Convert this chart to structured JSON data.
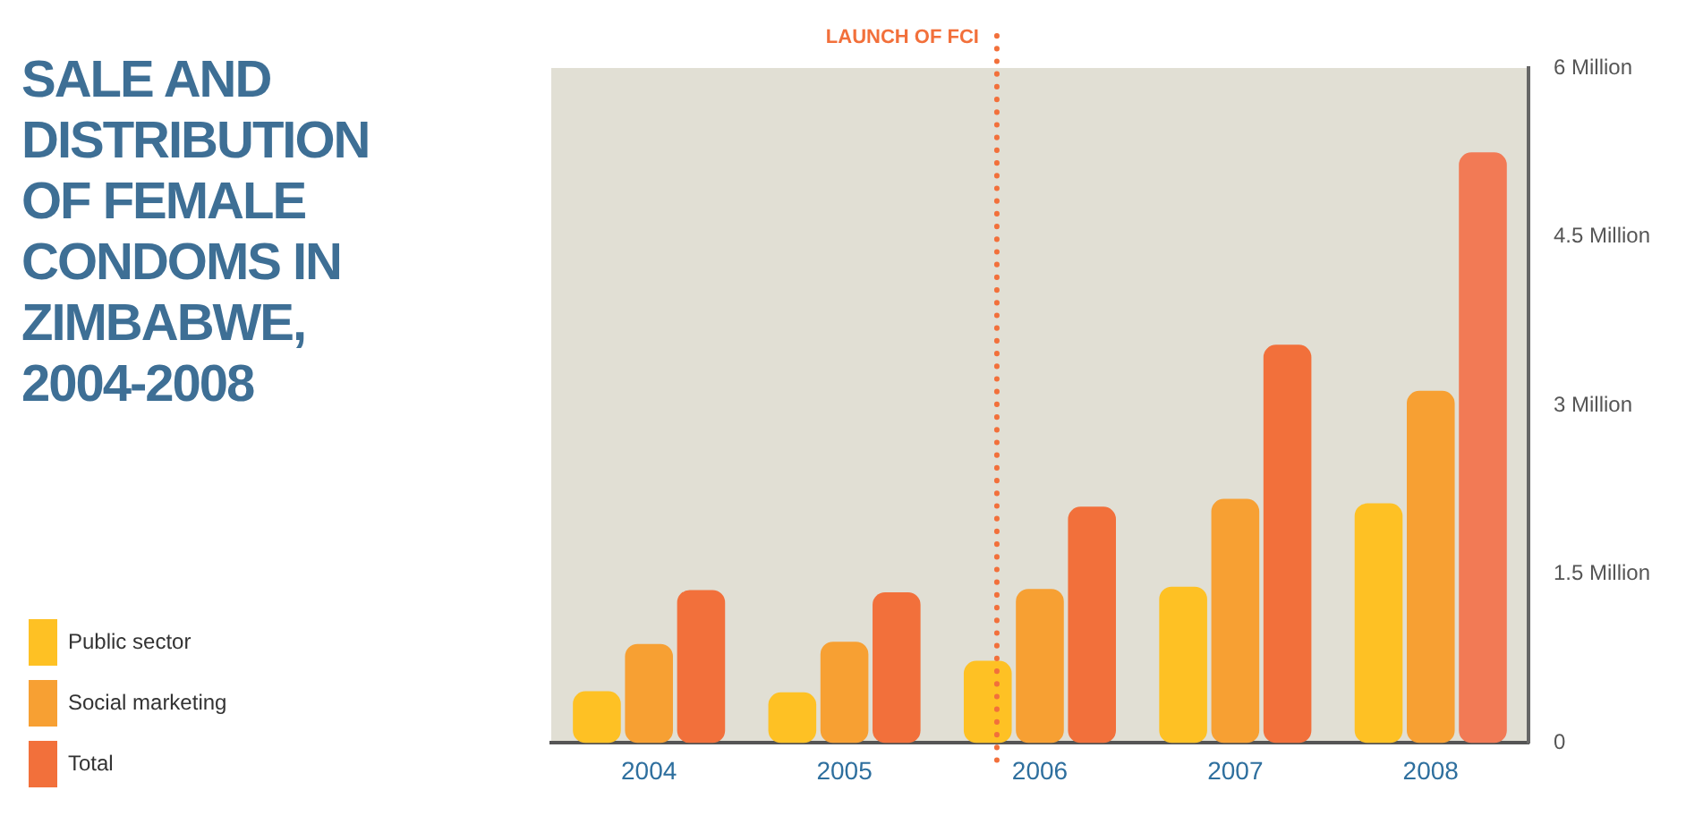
{
  "chart_data": {
    "type": "bar",
    "title": "SALE AND DISTRIBUTION OF FEMALE CONDOMS IN ZIMBABWE, 2004-2008",
    "categories": [
      "2004",
      "2005",
      "2006",
      "2007",
      "2008"
    ],
    "series": [
      {
        "name": "Public sector",
        "color": "#fec124",
        "values": [
          0.46,
          0.45,
          0.73,
          1.39,
          2.13
        ]
      },
      {
        "name": "Social marketing",
        "color": "#f7a033",
        "values": [
          0.88,
          0.9,
          1.37,
          2.17,
          3.13
        ]
      },
      {
        "name": "Total",
        "color": "#f2703b",
        "colors": [
          "#f2703b",
          "#f2703b",
          "#f2703b",
          "#f2703b",
          "#f27a55"
        ],
        "values": [
          1.36,
          1.34,
          2.1,
          3.54,
          5.25
        ]
      }
    ],
    "ylim": [
      0,
      6
    ],
    "yticks": [
      0,
      {
        "value": 1.5,
        "label": "1.5 Million"
      },
      {
        "value": 3,
        "label": "3 Million"
      },
      {
        "value": 4.5,
        "label": "4.5 Million"
      },
      {
        "value": 6,
        "label": "6 Million"
      }
    ],
    "ref_lines": [
      {
        "axis": "x",
        "value": "2006",
        "label": "LAUNCH OF FCI",
        "color": "#f2703b",
        "line_style": "dotted"
      }
    ],
    "grid": false,
    "legend": "bottom left"
  }
}
